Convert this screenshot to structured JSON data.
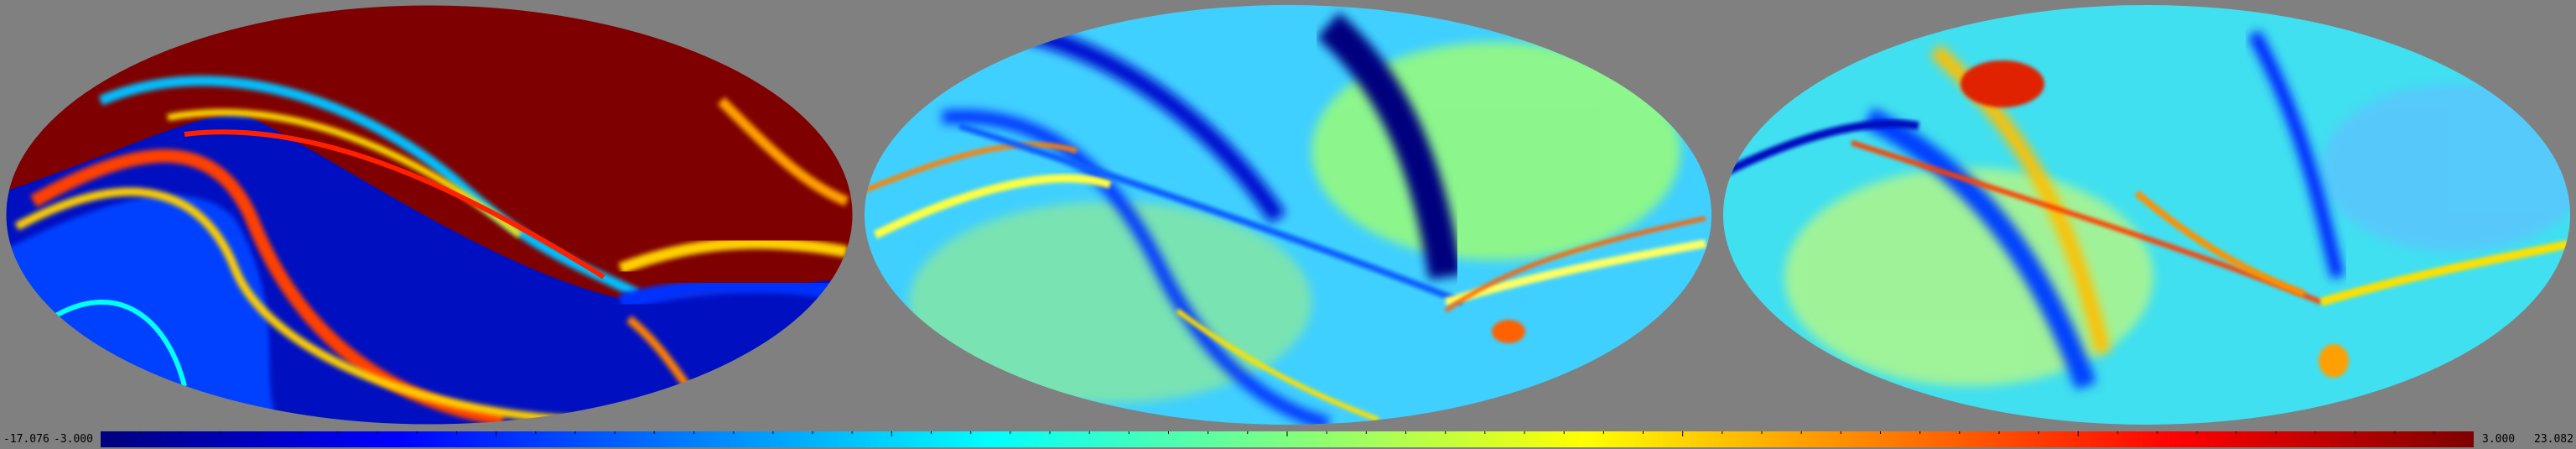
{
  "image": {
    "description_kind": "three Mollweide-projection sky maps with shared color scale",
    "panels": [
      {
        "name": "map-left",
        "dominant_colors": [
          "#7f0000",
          "#0000ff",
          "#ffd000"
        ]
      },
      {
        "name": "map-center",
        "dominant_colors": [
          "#40c8ff",
          "#00007f",
          "#ffff60"
        ]
      },
      {
        "name": "map-right",
        "dominant_colors": [
          "#40e0f0",
          "#0030ff",
          "#ffc000"
        ]
      }
    ]
  },
  "colorbar": {
    "min_outer": "-17.076",
    "min_inner": "-3.000",
    "max_inner": "3.000",
    "max_outer": "23.082",
    "colormap": "jet"
  },
  "background_color": "#808080"
}
